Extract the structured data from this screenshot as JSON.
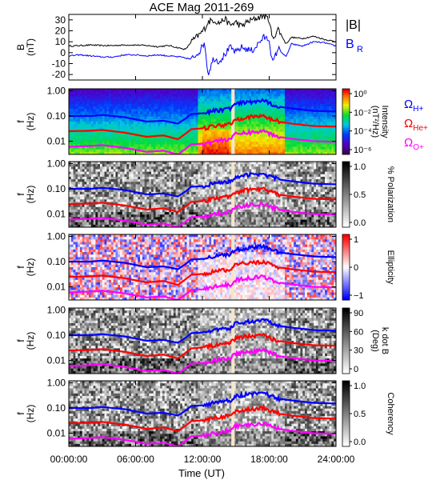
{
  "chart_data": {
    "type": "multi-panel spectrogram",
    "title": "ACE Mag 2011-269",
    "xlabel": "Time (UT)",
    "x_ticks": [
      "00:00:00",
      "06:00:00",
      "12:00:00",
      "18:00:00",
      "24:00:00"
    ],
    "xlim_hours": [
      0,
      24
    ],
    "gap_hours": [
      14.6,
      14.9
    ],
    "colors": {
      "black": "#000000",
      "blue": "#0000ff",
      "red": "#ff0000",
      "magenta": "#ff00ff",
      "gap": "#f5e6cc"
    },
    "freq_series": [
      {
        "ion_html": "Ω<sub>H+</sub>",
        "color": "#0000ff",
        "points": [
          [
            0,
            0.1
          ],
          [
            2,
            0.1
          ],
          [
            3,
            0.11
          ],
          [
            5,
            0.09
          ],
          [
            7,
            0.06
          ],
          [
            8.5,
            0.065
          ],
          [
            9.8,
            0.05
          ],
          [
            10.5,
            0.08
          ],
          [
            11,
            0.12
          ],
          [
            12.2,
            0.13
          ],
          [
            13,
            0.16
          ],
          [
            14.5,
            0.2
          ],
          [
            15,
            0.3
          ],
          [
            16,
            0.35
          ],
          [
            17.5,
            0.4
          ],
          [
            18.2,
            0.3
          ],
          [
            19,
            0.23
          ],
          [
            20,
            0.2
          ],
          [
            22,
            0.16
          ],
          [
            24,
            0.15
          ]
        ]
      },
      {
        "ion_html": "Ω<sub>He+</sub>",
        "color": "#ff0000",
        "points": [
          [
            0,
            0.025
          ],
          [
            2,
            0.026
          ],
          [
            3,
            0.028
          ],
          [
            5,
            0.022
          ],
          [
            7,
            0.015
          ],
          [
            8.5,
            0.017
          ],
          [
            9.8,
            0.012
          ],
          [
            10.5,
            0.02
          ],
          [
            11,
            0.03
          ],
          [
            12.2,
            0.033
          ],
          [
            13,
            0.04
          ],
          [
            14.5,
            0.05
          ],
          [
            15,
            0.075
          ],
          [
            16,
            0.09
          ],
          [
            17.5,
            0.1
          ],
          [
            18.2,
            0.075
          ],
          [
            19,
            0.058
          ],
          [
            20,
            0.05
          ],
          [
            22,
            0.04
          ],
          [
            24,
            0.038
          ]
        ]
      },
      {
        "ion_html": "Ω<sub>O+</sub>",
        "color": "#ff00ff",
        "points": [
          [
            0,
            0.006
          ],
          [
            2,
            0.0065
          ],
          [
            3,
            0.007
          ],
          [
            5,
            0.0055
          ],
          [
            7,
            0.0038
          ],
          [
            8.5,
            0.0042
          ],
          [
            9.8,
            0.003
          ],
          [
            10.5,
            0.005
          ],
          [
            11,
            0.0075
          ],
          [
            12.2,
            0.008
          ],
          [
            13,
            0.01
          ],
          [
            14.5,
            0.0125
          ],
          [
            15,
            0.019
          ],
          [
            16,
            0.022
          ],
          [
            17.5,
            0.025
          ],
          [
            18.2,
            0.019
          ],
          [
            19,
            0.0145
          ],
          [
            20,
            0.0125
          ],
          [
            22,
            0.01
          ],
          [
            24,
            0.0095
          ]
        ]
      }
    ],
    "panels": [
      {
        "kind": "line",
        "ylabel": "B\n(nT)",
        "ylim": [
          -25,
          35
        ],
        "yticks": [
          "30",
          "20",
          "10",
          "0",
          "-10",
          "-20"
        ],
        "ytick_values": [
          30,
          20,
          10,
          0,
          -10,
          -20
        ],
        "legend": [
          "|B|",
          "B"
        ],
        "legend_sub": [
          "",
          "R"
        ],
        "series": [
          {
            "name": "|B|",
            "color": "#000000",
            "x": [
              0,
              1,
              2,
              3,
              4,
              5,
              6,
              7,
              8,
              9,
              10,
              10.5,
              11,
              11.8,
              12.2,
              12.5,
              13,
              13.5,
              14,
              14.5,
              15,
              15.5,
              16,
              16.5,
              17,
              17.5,
              18,
              18.3,
              18.8,
              19.5,
              20,
              21,
              22,
              23,
              24
            ],
            "y": [
              6,
              6.5,
              7,
              6.5,
              6.5,
              7,
              7,
              6.5,
              5.5,
              6.5,
              4,
              3,
              10,
              17,
              22,
              28,
              30,
              27,
              31,
              25,
              28,
              24,
              28,
              30,
              32,
              34,
              30,
              12,
              22,
              8,
              14,
              13,
              15,
              12,
              10
            ]
          },
          {
            "name": "B",
            "color": "#0000ff",
            "x": [
              0,
              1,
              2,
              3,
              4,
              5,
              6,
              7,
              8,
              9,
              10,
              10.5,
              11,
              11.8,
              12.2,
              12.5,
              13,
              13.5,
              14,
              14.5,
              15,
              15.5,
              16,
              16.5,
              17,
              17.5,
              18,
              18.3,
              18.8,
              19.5,
              20,
              21,
              22,
              23,
              24
            ],
            "y": [
              -3,
              -2,
              -3,
              -4,
              -4,
              -2,
              -2,
              -3,
              -2,
              -3,
              -4,
              -5,
              -6,
              2,
              10,
              -20,
              -5,
              -8,
              -2,
              5,
              0,
              5,
              3,
              2,
              8,
              14,
              12,
              -10,
              4,
              -4,
              8,
              6,
              10,
              9,
              6
            ]
          }
        ]
      },
      {
        "kind": "spec",
        "scheme": "rainbow",
        "cbar_label": "Intensity\n(nT²/Hz)",
        "cbar_ticks": [
          "10⁰",
          "10⁻²",
          "10⁻⁴",
          "10⁻⁶"
        ],
        "show_ion_labels": true
      },
      {
        "kind": "spec",
        "scheme": "gray",
        "cbar_label": "% Polarization",
        "cbar_ticks": [
          "1.0",
          "0.5",
          "0.0"
        ]
      },
      {
        "kind": "spec",
        "scheme": "bwr",
        "cbar_label": "Ellipticity",
        "cbar_ticks": [
          "1",
          "0",
          "−1"
        ]
      },
      {
        "kind": "spec",
        "scheme": "gray",
        "cbar_label": "k dot B\n(Deg)",
        "cbar_ticks": [
          "90",
          "60",
          "30",
          "0"
        ]
      },
      {
        "kind": "spec",
        "scheme": "gray",
        "cbar_label": "Coherency",
        "cbar_ticks": [
          "1.0",
          "0.5",
          "0.0"
        ]
      }
    ],
    "freq_axis": {
      "ylabel": "f\n(Hz)",
      "ylim": [
        0.003,
        1.2
      ],
      "log": true,
      "yticks": [
        "1.00",
        "0.10",
        "0.01"
      ],
      "ytick_values": [
        1,
        0.1,
        0.01
      ]
    }
  }
}
